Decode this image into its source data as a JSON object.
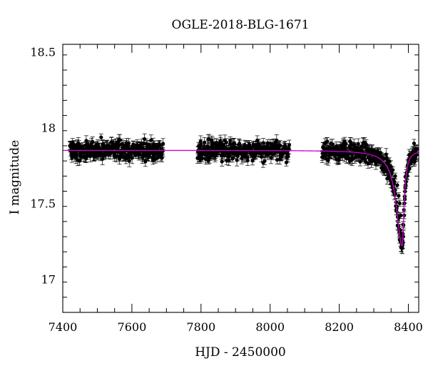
{
  "chart_data": {
    "type": "scatter",
    "title": "OGLE-2018-BLG-1671",
    "xlabel": "HJD - 2450000",
    "ylabel": "I magnitude",
    "xlim": [
      7400,
      8430
    ],
    "ylim": [
      18.55,
      16.78
    ],
    "y_inverted": true,
    "grid": false,
    "legend": "none",
    "x_ticks": [
      7400,
      7600,
      7800,
      8000,
      8200,
      8400
    ],
    "x_tick_labels": [
      "7400",
      "7600",
      "7800",
      "8000",
      "8200",
      "8400"
    ],
    "y_ticks": [
      17,
      17.5,
      18,
      18.5
    ],
    "y_tick_labels": [
      "17",
      "17.5",
      "18",
      "18.5"
    ],
    "series": [
      {
        "kind": "data_with_errorbars",
        "color": "#000000",
        "baseline_mag": 17.85,
        "scatter_mag": 0.045,
        "typical_error_mag": 0.03,
        "seasons": [
          {
            "x_start": 7420,
            "x_end": 7690
          },
          {
            "x_start": 7790,
            "x_end": 8055
          },
          {
            "x_start": 8150,
            "x_end": 8425
          }
        ],
        "peak_points": [
          {
            "x": 8340,
            "y": 17.78
          },
          {
            "x": 8355,
            "y": 17.72
          },
          {
            "x": 8362,
            "y": 17.68
          },
          {
            "x": 8368,
            "y": 17.62
          },
          {
            "x": 8372,
            "y": 17.55
          },
          {
            "x": 8375,
            "y": 17.5
          },
          {
            "x": 8378,
            "y": 17.42
          },
          {
            "x": 8380,
            "y": 17.3
          },
          {
            "x": 8381,
            "y": 17.25
          },
          {
            "x": 8382,
            "y": 17.22
          },
          {
            "x": 8383,
            "y": 17.24
          },
          {
            "x": 8384,
            "y": 17.3
          },
          {
            "x": 8385,
            "y": 17.36
          },
          {
            "x": 8388,
            "y": 17.5
          },
          {
            "x": 8391,
            "y": 17.6
          },
          {
            "x": 8395,
            "y": 17.68
          },
          {
            "x": 8400,
            "y": 17.75
          },
          {
            "x": 8410,
            "y": 17.8
          },
          {
            "x": 8420,
            "y": 17.83
          }
        ]
      },
      {
        "kind": "model_curve",
        "color": "#cc00cc",
        "baseline_mag": 17.85,
        "peak_x": 8382,
        "peak_mag": 17.22,
        "rise_tau_days": 20,
        "fall_tau_days": 7
      }
    ]
  }
}
